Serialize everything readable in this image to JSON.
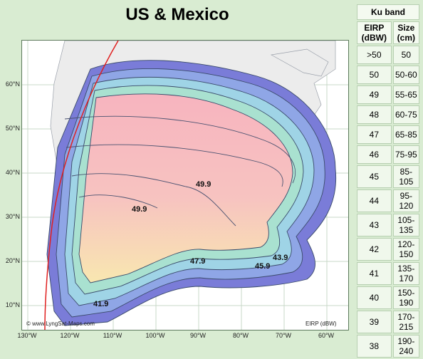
{
  "title": "US & Mexico",
  "footer": {
    "watermark": "© www.LyngSat-Maps.com",
    "unit": "EIRP (dBW)"
  },
  "latitude_labels": [
    "60°N",
    "50°N",
    "40°N",
    "30°N",
    "20°N",
    "10°N"
  ],
  "longitude_labels": [
    "130°W",
    "120°W",
    "110°W",
    "100°W",
    "90°W",
    "80°W",
    "70°W",
    "60°W"
  ],
  "contour_labels": [
    "49.9",
    "49.9",
    "47.9",
    "45.9",
    "43.9",
    "41.9"
  ],
  "legend": {
    "band": "Ku band",
    "col_eirp": "EIRP (dBW)",
    "col_size": "Size (cm)",
    "rows": [
      {
        "eirp": ">50",
        "size": "50"
      },
      {
        "eirp": "50",
        "size": "50-60"
      },
      {
        "eirp": "49",
        "size": "55-65"
      },
      {
        "eirp": "48",
        "size": "60-75"
      },
      {
        "eirp": "47",
        "size": "65-85"
      },
      {
        "eirp": "46",
        "size": "75-95"
      },
      {
        "eirp": "45",
        "size": "85-105"
      },
      {
        "eirp": "44",
        "size": "95-120"
      },
      {
        "eirp": "43",
        "size": "105-135"
      },
      {
        "eirp": "42",
        "size": "120-150"
      },
      {
        "eirp": "41",
        "size": "135-170"
      },
      {
        "eirp": "40",
        "size": "150-190"
      },
      {
        "eirp": "39",
        "size": "170-215"
      },
      {
        "eirp": "38",
        "size": "190-240"
      }
    ]
  },
  "colors": {
    "ocean": "#ffffff",
    "grid": "#c9d8c9",
    "horizon": "#e02020",
    "contour_line": "#3a4a6a",
    "land": "#e9e9e9",
    "background": "#d9ecd2"
  }
}
